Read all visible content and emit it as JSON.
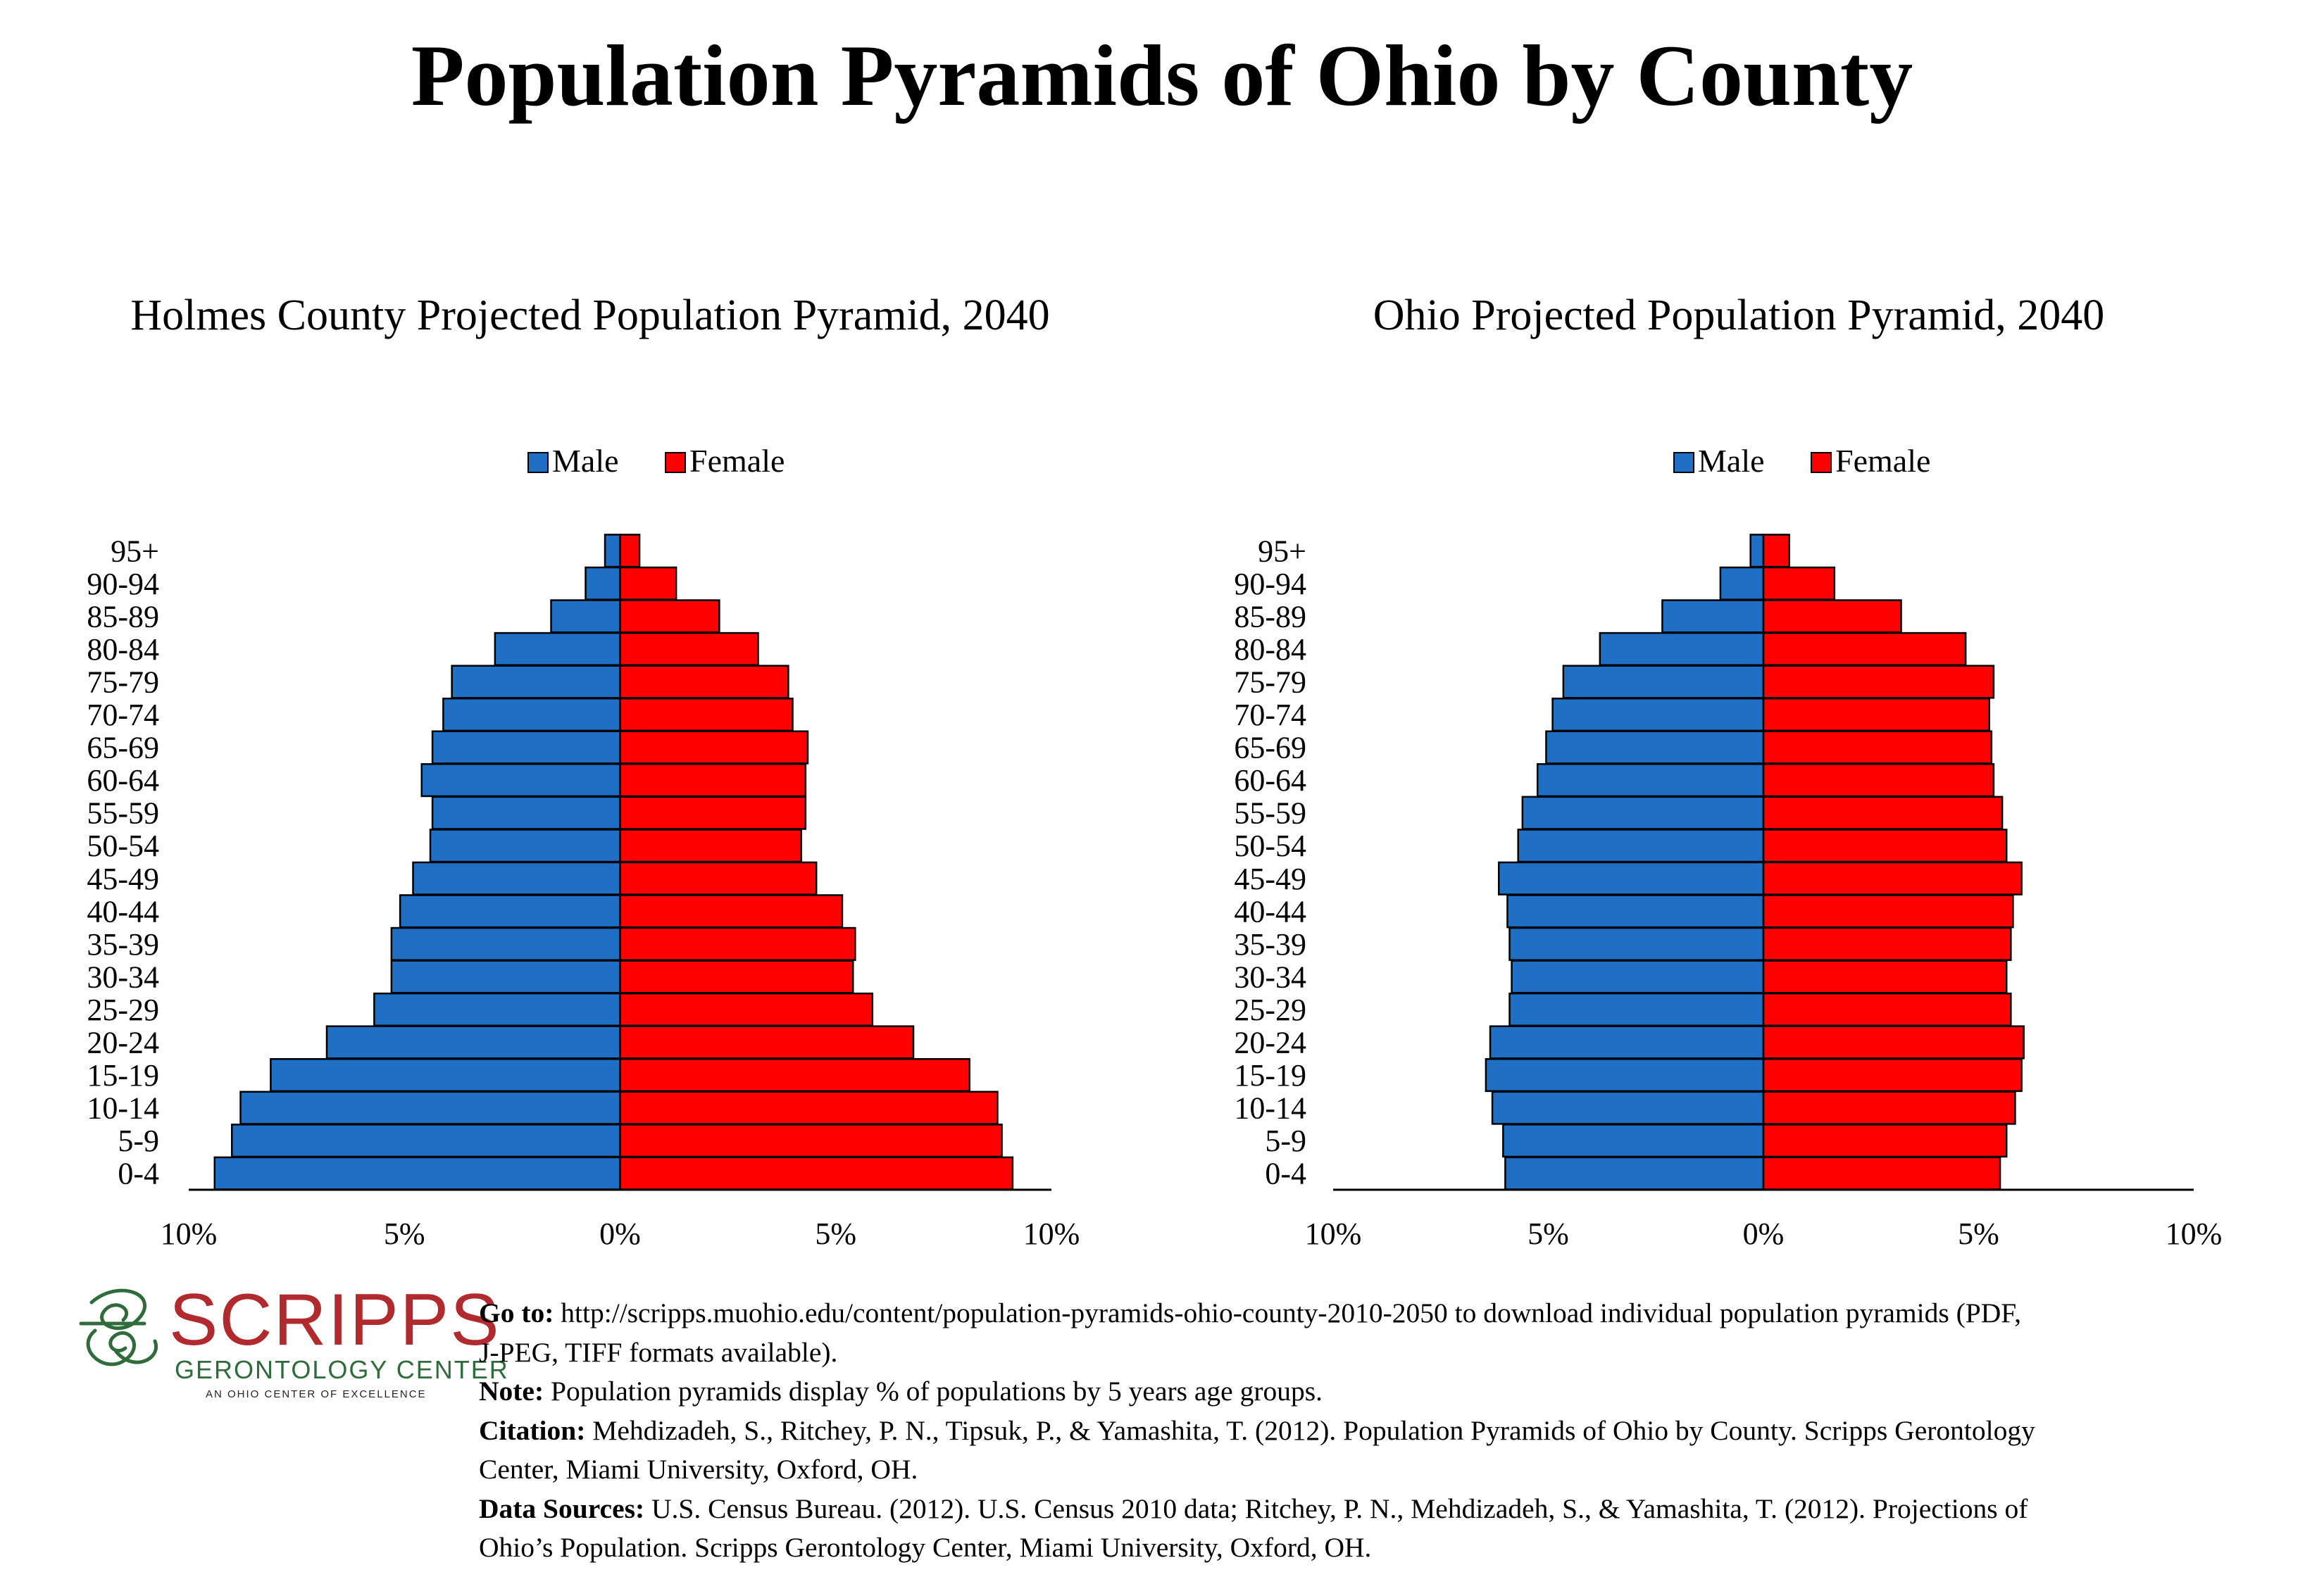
{
  "title": "Population Pyramids of Ohio by County",
  "legend": {
    "male": "Male",
    "female": "Female"
  },
  "colors": {
    "male": "#1f6fc5",
    "female": "#ff0000",
    "axis": "#000000"
  },
  "chart_data": [
    {
      "type": "bar",
      "orientation": "horizontal-diverging",
      "title": "Holmes County Projected Population Pyramid, 2040",
      "categories": [
        "95+",
        "90-94",
        "85-89",
        "80-84",
        "75-79",
        "70-74",
        "65-69",
        "60-64",
        "55-59",
        "50-54",
        "45-49",
        "40-44",
        "35-39",
        "30-34",
        "25-29",
        "20-24",
        "15-19",
        "10-14",
        "5-9",
        "0-4"
      ],
      "series": [
        {
          "name": "Male",
          "values": [
            0.35,
            0.8,
            1.6,
            2.9,
            3.9,
            4.1,
            4.35,
            4.6,
            4.35,
            4.4,
            4.8,
            5.1,
            5.3,
            5.3,
            5.7,
            6.8,
            8.1,
            8.8,
            9.0,
            9.4
          ]
        },
        {
          "name": "Female",
          "values": [
            0.45,
            1.3,
            2.3,
            3.2,
            3.9,
            4.0,
            4.35,
            4.3,
            4.3,
            4.2,
            4.55,
            5.15,
            5.45,
            5.4,
            5.85,
            6.8,
            8.1,
            8.75,
            8.85,
            9.1
          ]
        }
      ],
      "xlim": [
        -10,
        10
      ],
      "xticks": [
        -10,
        -5,
        0,
        5,
        10
      ],
      "xtick_labels": [
        "10%",
        "5%",
        "0%",
        "5%",
        "10%"
      ],
      "legend_position": "top-center",
      "grid": false
    },
    {
      "type": "bar",
      "orientation": "horizontal-diverging",
      "title": "Ohio Projected Population Pyramid, 2040",
      "categories": [
        "95+",
        "90-94",
        "85-89",
        "80-84",
        "75-79",
        "70-74",
        "65-69",
        "60-64",
        "55-59",
        "50-54",
        "45-49",
        "40-44",
        "35-39",
        "30-34",
        "25-29",
        "20-24",
        "15-19",
        "10-14",
        "5-9",
        "0-4"
      ],
      "series": [
        {
          "name": "Male",
          "values": [
            0.3,
            1.0,
            2.35,
            3.8,
            4.65,
            4.9,
            5.05,
            5.25,
            5.6,
            5.7,
            6.15,
            5.95,
            5.9,
            5.85,
            5.9,
            6.35,
            6.45,
            6.3,
            6.05,
            6.0
          ]
        },
        {
          "name": "Female",
          "values": [
            0.6,
            1.65,
            3.2,
            4.7,
            5.35,
            5.25,
            5.3,
            5.35,
            5.55,
            5.65,
            6.0,
            5.8,
            5.75,
            5.65,
            5.75,
            6.05,
            6.0,
            5.85,
            5.65,
            5.5
          ]
        }
      ],
      "xlim": [
        -10,
        10
      ],
      "xticks": [
        -10,
        -5,
        0,
        5,
        10
      ],
      "xtick_labels": [
        "10%",
        "5%",
        "0%",
        "5%",
        "10%"
      ],
      "legend_position": "top-center",
      "grid": false
    }
  ],
  "logo": {
    "name": "SCRIPPS",
    "subtitle": "GERONTOLOGY CENTER",
    "tagline": "AN OHIO CENTER OF EXCELLENCE",
    "colors": {
      "name": "#b02a2e",
      "subtitle": "#2f6b3b"
    }
  },
  "notes": [
    {
      "label": "Go to:",
      "text": " http://scripps.muohio.edu/content/population-pyramids-ohio-county-2010-2050 to download individual population pyramids (PDF,"
    },
    {
      "label": "",
      "text": "J-PEG, TIFF formats available)."
    },
    {
      "label": "Note:",
      "text": " Population pyramids display % of populations by 5 years age groups."
    },
    {
      "label": "Citation:",
      "text": " Mehdizadeh, S., Ritchey, P. N., Tipsuk, P., & Yamashita, T. (2012). Population Pyramids of Ohio by County. Scripps Gerontology"
    },
    {
      "label": "",
      "text": "Center, Miami University, Oxford, OH."
    },
    {
      "label": "Data Sources:",
      "text": " U.S. Census Bureau. (2012). U.S. Census 2010 data; Ritchey, P. N., Mehdizadeh, S., & Yamashita, T. (2012). Projections of"
    },
    {
      "label": "",
      "text": "Ohio’s Population. Scripps Gerontology Center, Miami University, Oxford, OH."
    }
  ]
}
